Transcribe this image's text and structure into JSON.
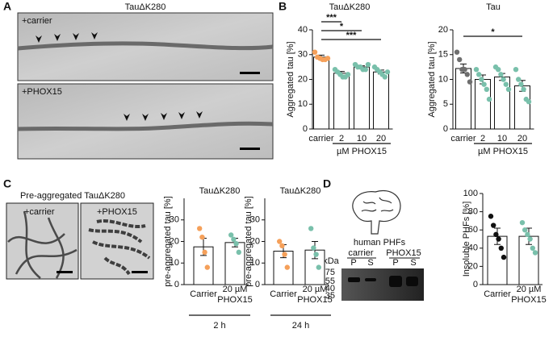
{
  "panels": {
    "A": {
      "label": "A",
      "title": "TauΔK280",
      "images": [
        "+carrier",
        "+PHOX15"
      ]
    },
    "B": {
      "label": "B"
    },
    "C": {
      "label": "C",
      "title": "Pre-aggregated TauΔK280",
      "images": [
        "+carrier",
        "+PHOX15"
      ]
    },
    "D": {
      "label": "D",
      "caption": "human PHFs",
      "unit": "kDa",
      "groups": [
        "carrier",
        "PHOX15"
      ],
      "lanes": [
        "P",
        "S",
        "P",
        "S"
      ],
      "markers": [
        "75",
        "55",
        "40",
        "35"
      ]
    }
  },
  "chart_data": [
    {
      "type": "bar",
      "title": "TauΔK280",
      "ylabel": "Aggregated tau [%]",
      "xlabel": "µM PHOX15",
      "categories": [
        "carrier",
        "2",
        "10",
        "20"
      ],
      "values": [
        29,
        22.5,
        25,
        23
      ],
      "errors": [
        0.8,
        0.7,
        0.5,
        0.8
      ],
      "colors": [
        "#f5a05a",
        "#79c0ab",
        "#79c0ab",
        "#79c0ab"
      ],
      "points": [
        [
          31,
          29,
          28.5,
          28,
          28,
          28.5
        ],
        [
          24,
          23,
          22,
          21,
          21,
          22
        ],
        [
          26,
          25,
          25,
          24,
          24,
          26
        ],
        [
          25,
          24,
          23,
          22,
          21,
          23
        ]
      ],
      "ylim": [
        0,
        40
      ],
      "yticks": [
        0,
        10,
        20,
        30,
        40
      ],
      "annotations": [
        {
          "text": "***",
          "between": [
            "carrier",
            "2"
          ]
        },
        {
          "text": "*",
          "between": [
            "carrier",
            "10"
          ]
        },
        {
          "text": "***",
          "between": [
            "carrier",
            "20"
          ]
        }
      ]
    },
    {
      "type": "bar",
      "title": "Tau",
      "ylabel": "Aggregated tau [%]",
      "xlabel": "µM PHOX15",
      "categories": [
        "carrier",
        "2",
        "10",
        "20"
      ],
      "values": [
        12.2,
        10,
        10.5,
        8.7
      ],
      "errors": [
        0.9,
        0.9,
        0.7,
        1.1
      ],
      "colors": [
        "#6e6e6e",
        "#79c0ab",
        "#79c0ab",
        "#79c0ab"
      ],
      "points": [
        [
          15.5,
          14,
          12,
          12,
          11,
          9.5
        ],
        [
          12,
          11,
          10,
          9,
          8,
          6
        ],
        [
          12.5,
          12,
          11,
          10,
          9,
          8
        ],
        [
          12,
          10,
          9,
          8,
          6,
          5.5
        ]
      ],
      "ylim": [
        0,
        20
      ],
      "yticks": [
        0,
        5,
        10,
        15,
        20
      ],
      "annotations": [
        {
          "text": "*",
          "between": [
            "carrier",
            "20"
          ]
        }
      ]
    },
    {
      "type": "bar",
      "title": "TauΔK280",
      "ylabel": "pre-aggregated tau [%]",
      "xlabel": "2 h",
      "categories": [
        "Carrier",
        "20 µM PHOX15"
      ],
      "values": [
        17.5,
        19.5
      ],
      "errors": [
        4,
        2
      ],
      "colors": [
        "#f5a05a",
        "#79c0ab"
      ],
      "points": [
        [
          26,
          22,
          15,
          8
        ],
        [
          23,
          21,
          19,
          15
        ]
      ],
      "ylim": [
        0,
        40
      ],
      "yticks": [
        0,
        10,
        20,
        30
      ]
    },
    {
      "type": "bar",
      "title": "TauΔK280",
      "ylabel": "pre-aggregated tau [%]",
      "xlabel": "24 h",
      "categories": [
        "Carrier",
        "20 µM PHOX15"
      ],
      "values": [
        15.5,
        16
      ],
      "errors": [
        3,
        4
      ],
      "colors": [
        "#f5a05a",
        "#79c0ab"
      ],
      "points": [
        [
          20,
          18,
          14,
          8
        ],
        [
          26,
          17,
          14,
          8
        ]
      ],
      "ylim": [
        0,
        40
      ],
      "yticks": [
        0,
        10,
        20,
        30
      ]
    },
    {
      "type": "bar",
      "ylabel": "Insoluble PHFs [%]",
      "categories": [
        "Carrier",
        "20 µM PHOX15"
      ],
      "values": [
        53,
        53
      ],
      "errors": [
        9,
        9
      ],
      "colors": [
        "#111111",
        "#79c0ab"
      ],
      "points": [
        [
          75,
          65,
          55,
          50,
          40,
          30
        ],
        [
          68,
          60,
          55,
          50,
          40,
          35
        ]
      ],
      "ylim": [
        0,
        100
      ],
      "yticks": [
        0,
        20,
        40,
        60,
        80,
        100
      ]
    }
  ]
}
